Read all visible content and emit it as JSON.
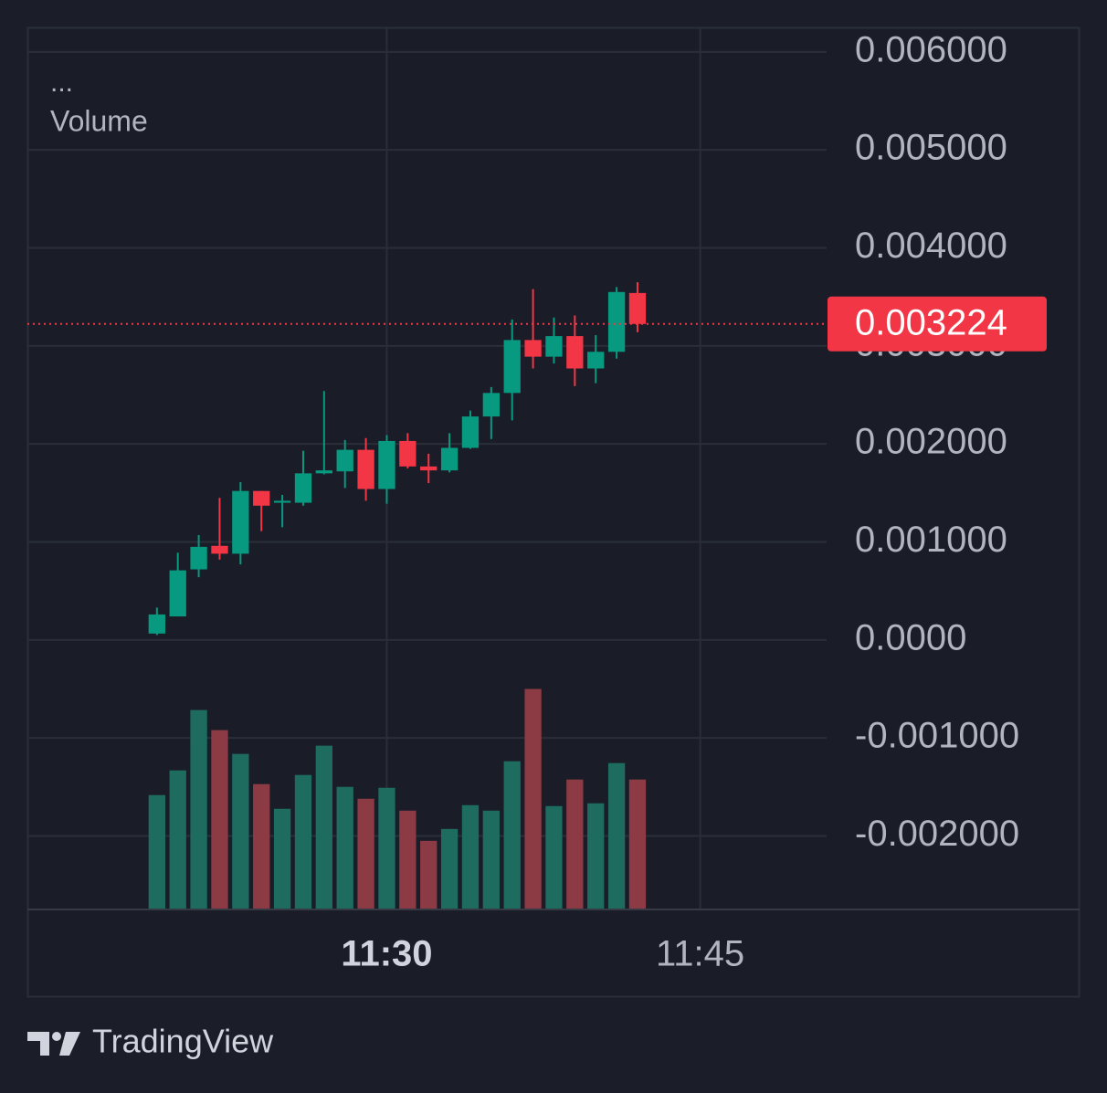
{
  "chart_data": {
    "type": "candlestick",
    "legend_title": "...",
    "volume_name": "Volume",
    "open": [
      6.5e-05,
      0.00024,
      0.00072,
      0.00096,
      0.00088,
      0.00152,
      0.0014,
      0.0014,
      0.0017,
      0.00172,
      0.00194,
      0.00154,
      0.00203,
      0.00177,
      0.00173,
      0.00196,
      0.00228,
      0.00252,
      0.00306,
      0.00289,
      0.0031,
      0.00277,
      0.00294,
      0.00354
    ],
    "high": [
      0.00033,
      0.00089,
      0.00107,
      0.00145,
      0.00161,
      0.00152,
      0.00148,
      0.00193,
      0.00254,
      0.00204,
      0.00206,
      0.00209,
      0.00211,
      0.0019,
      0.00211,
      0.00234,
      0.00258,
      0.00327,
      0.00358,
      0.00329,
      0.00331,
      0.00311,
      0.0036,
      0.00365
    ],
    "low": [
      5e-05,
      0.00024,
      0.00064,
      0.00082,
      0.00077,
      0.00111,
      0.00115,
      0.00137,
      0.00169,
      0.00155,
      0.00142,
      0.00139,
      0.00175,
      0.0016,
      0.00171,
      0.00195,
      0.00205,
      0.00224,
      0.00277,
      0.00282,
      0.00259,
      0.00262,
      0.00287,
      0.00314
    ],
    "close": [
      0.00026,
      0.00071,
      0.00095,
      0.00088,
      0.00152,
      0.00137,
      0.00142,
      0.0017,
      0.00173,
      0.00194,
      0.00154,
      0.00203,
      0.00177,
      0.00173,
      0.00196,
      0.00228,
      0.00252,
      0.00306,
      0.00289,
      0.0031,
      0.00277,
      0.00294,
      0.00355,
      0.003224
    ],
    "volume": [
      125,
      152,
      218,
      196,
      170,
      137,
      110,
      147,
      179,
      134,
      121,
      133,
      108,
      75,
      88,
      114,
      108,
      162,
      241,
      113,
      142,
      116,
      160,
      142
    ],
    "up_color": "#089981",
    "down_color": "#f23645",
    "volume_up_color": "#1e6b60",
    "volume_down_color": "#8c3b45",
    "last_price": 0.003224,
    "xlim": [
      -6.2,
      32.05
    ],
    "xticks": [
      {
        "value": 11,
        "label": "11:30"
      },
      {
        "value": 26,
        "label": "11:45"
      }
    ],
    "ylim": [
      -0.00275,
      0.00625
    ],
    "yticks": [
      {
        "value": 0.006,
        "label": "0.006000"
      },
      {
        "value": 0.005,
        "label": "0.005000"
      },
      {
        "value": 0.004,
        "label": "0.004000"
      },
      {
        "value": 0.003,
        "label": "0.003000"
      },
      {
        "value": 0.002,
        "label": "0.002000"
      },
      {
        "value": 0.001,
        "label": "0.001000"
      },
      {
        "value": 0,
        "label": "0.0000"
      },
      {
        "value": -0.001,
        "label": "-0.001000"
      },
      {
        "value": -0.002,
        "label": "-0.002000"
      }
    ],
    "grid": true
  },
  "brand": "TradingView"
}
